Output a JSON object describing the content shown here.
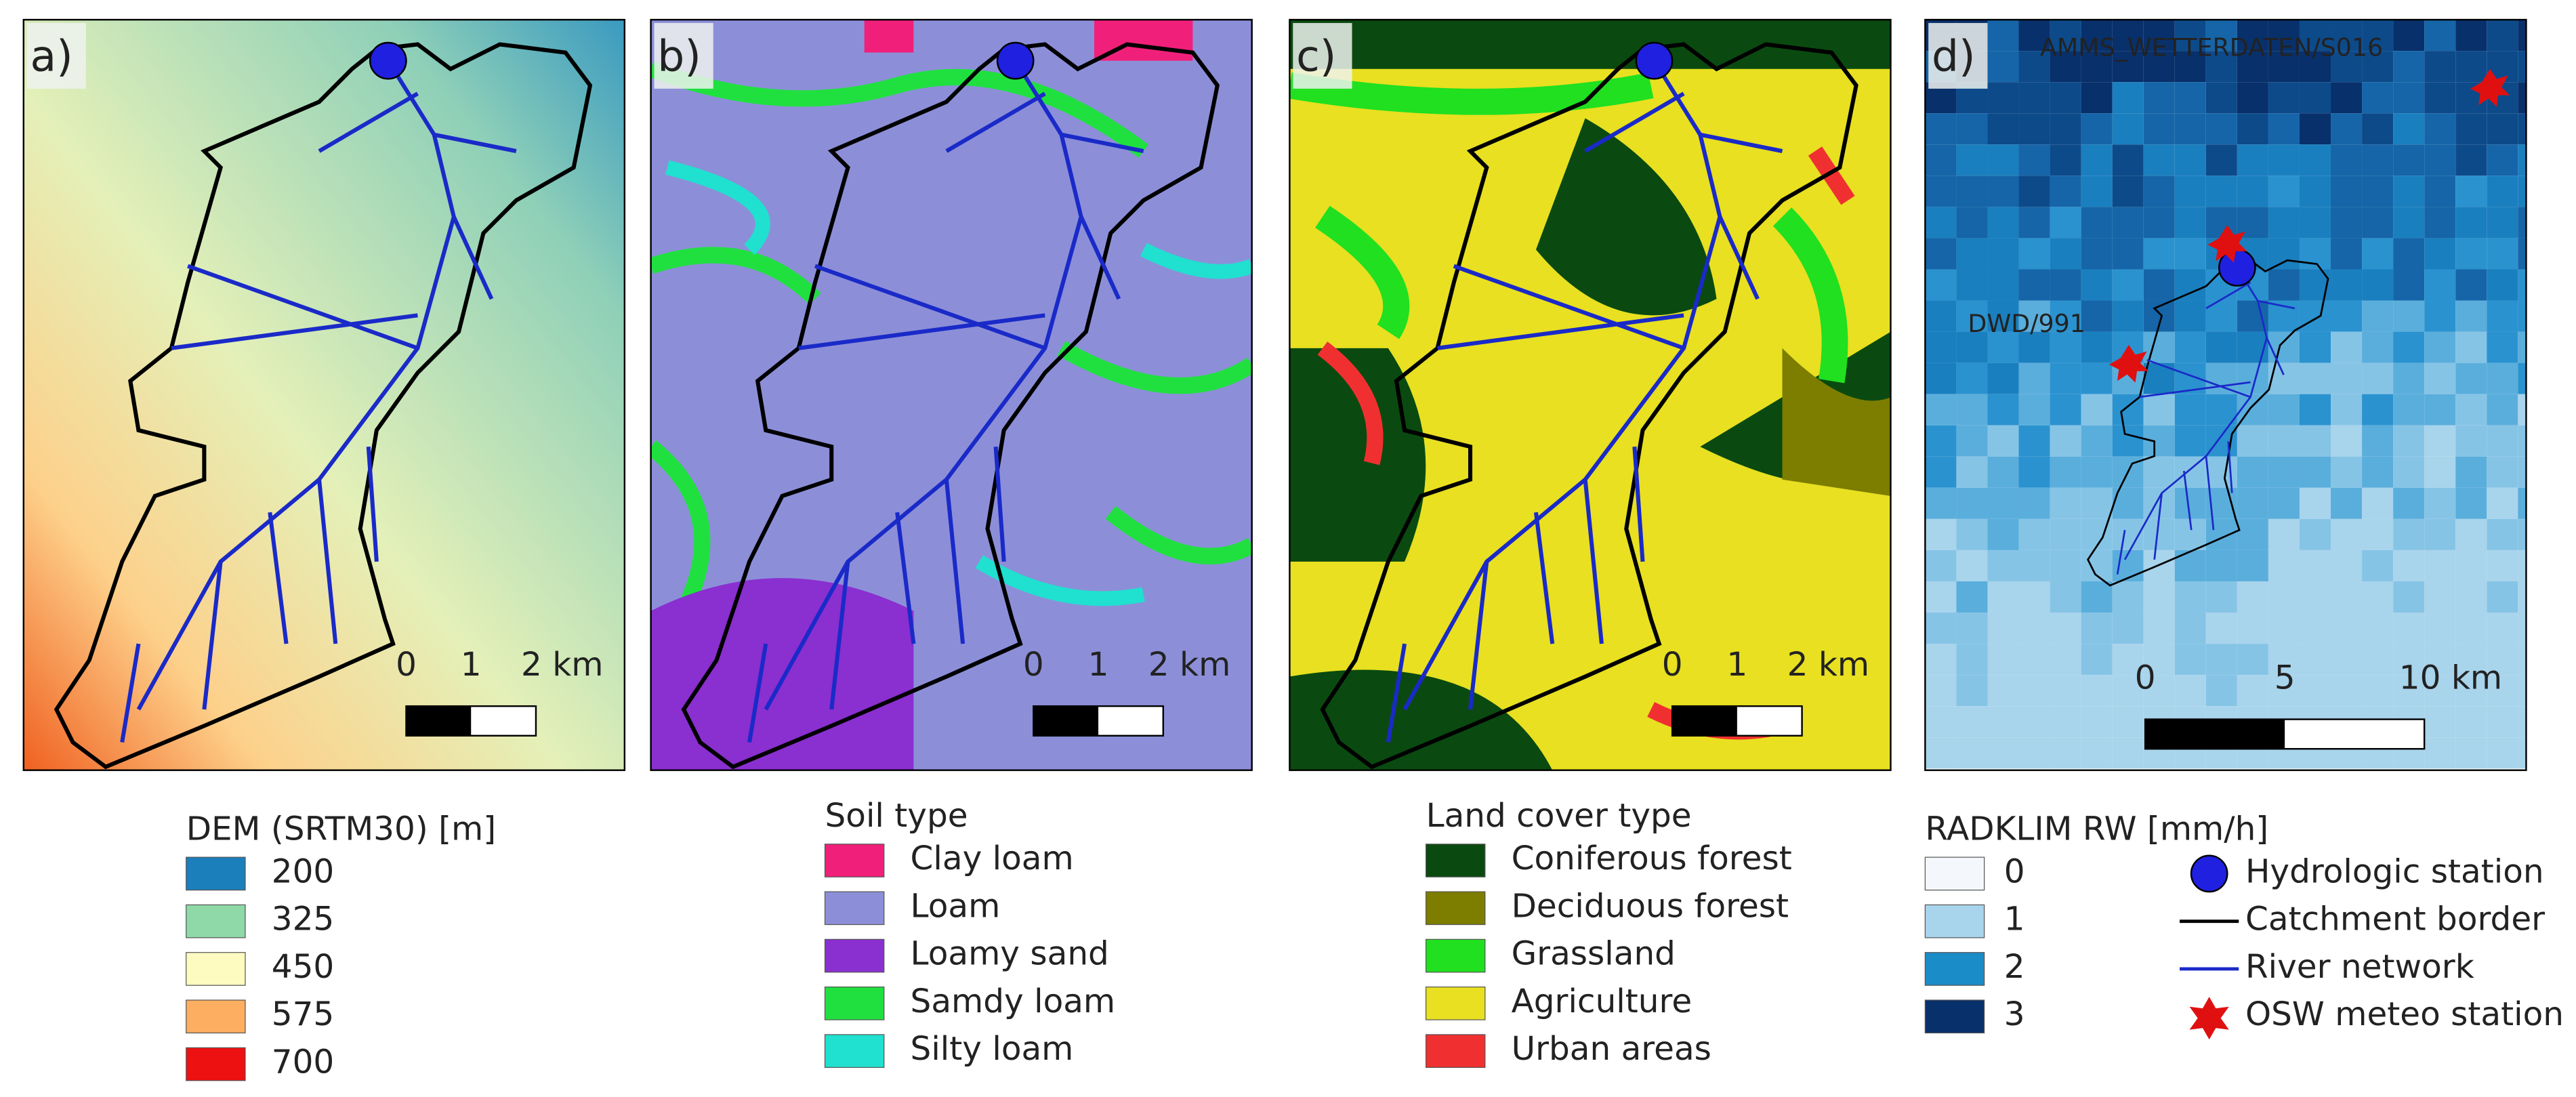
{
  "panels": [
    {
      "label": "a)",
      "scale_bar": [
        "0",
        "1",
        "2 km"
      ]
    },
    {
      "label": "b)",
      "scale_bar": [
        "0",
        "1",
        "2 km"
      ]
    },
    {
      "label": "c)",
      "scale_bar": [
        "0",
        "1",
        "2 km"
      ]
    },
    {
      "label": "d)",
      "scale_bar": [
        "0",
        "5",
        "10 km"
      ],
      "stations": [
        "AMMS_WETTERDATEN/S016",
        "DWD/991"
      ]
    }
  ],
  "legends": [
    {
      "title": "DEM (SRTM30) [m]",
      "items": [
        {
          "label": "200",
          "color": "#1a7fba"
        },
        {
          "label": "325",
          "color": "#8fd9a8"
        },
        {
          "label": "450",
          "color": "#fdfbc0"
        },
        {
          "label": "575",
          "color": "#fdae61"
        },
        {
          "label": "700",
          "color": "#ee1111"
        }
      ]
    },
    {
      "title": "Soil type",
      "items": [
        {
          "label": "Clay loam",
          "color": "#f0207a"
        },
        {
          "label": "Loam",
          "color": "#8c8fd8"
        },
        {
          "label": "Loamy sand",
          "color": "#8a2fd0"
        },
        {
          "label": "Samdy loam",
          "color": "#20e040"
        },
        {
          "label": "Silty loam",
          "color": "#20e0d0"
        }
      ]
    },
    {
      "title": "Land cover type",
      "items": [
        {
          "label": "Coniferous forest",
          "color": "#0a4a10"
        },
        {
          "label": "Deciduous forest",
          "color": "#7d7d00"
        },
        {
          "label": "Grassland",
          "color": "#20e020"
        },
        {
          "label": "Agriculture",
          "color": "#e8e020"
        },
        {
          "label": "Urban areas",
          "color": "#f03030"
        }
      ]
    },
    {
      "title": "RADKLIM RW [mm/h]",
      "items": [
        {
          "label": "0",
          "color": "#f4f8fc"
        },
        {
          "label": "1",
          "color": "#a8d4ec"
        },
        {
          "label": "2",
          "color": "#1a8cc8"
        },
        {
          "label": "3",
          "color": "#08306b"
        }
      ],
      "symbols": [
        "Hydrologic station",
        "Catchment border",
        "River network",
        "OSW meteo station"
      ]
    }
  ]
}
